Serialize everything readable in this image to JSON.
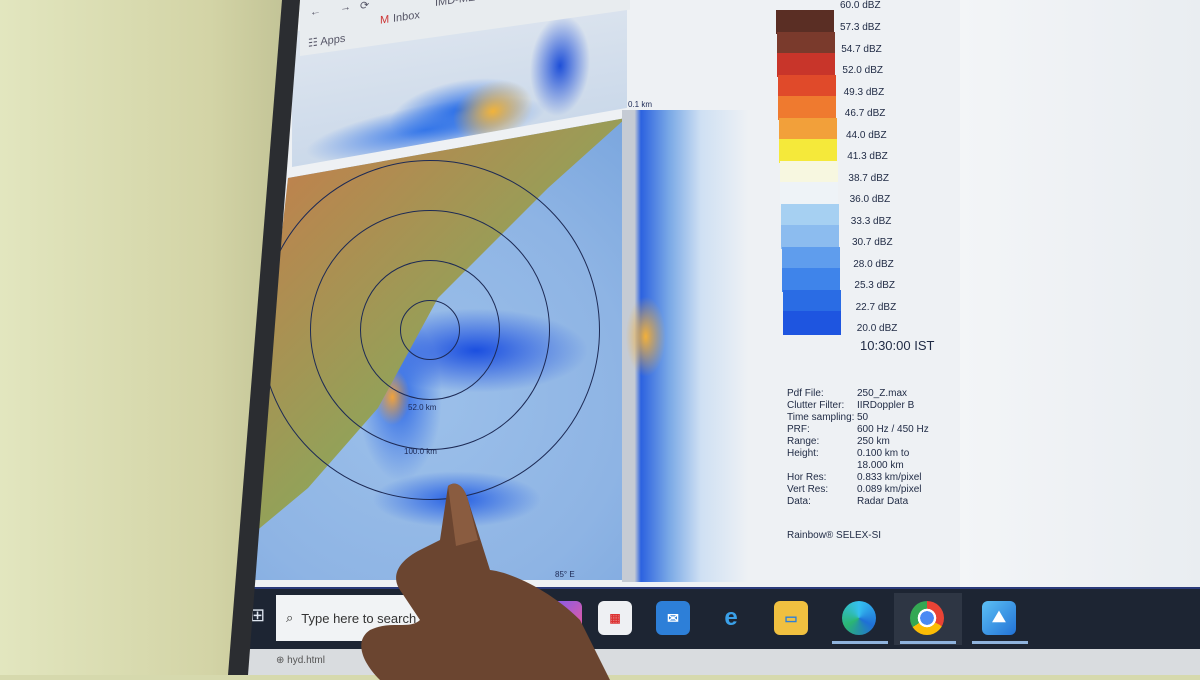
{
  "browser": {
    "bookmarks": [
      {
        "label": "Apps",
        "icon": "apps-grid-icon"
      },
      {
        "label": "Inbox",
        "icon": "gmail-icon"
      },
      {
        "label": "IMD-METAR",
        "icon": "weather-icon"
      }
    ]
  },
  "map": {
    "ring_labels": [
      "52.0 km",
      "100.0 km"
    ],
    "height_label": "0.1 km",
    "lon_label": "85° E"
  },
  "legend": {
    "top_label": "60.0 dBZ",
    "labels": [
      "57.3 dBZ",
      "54.7 dBZ",
      "52.0 dBZ",
      "49.3 dBZ",
      "46.7 dBZ",
      "44.0 dBZ",
      "41.3 dBZ",
      "38.7 dBZ",
      "36.0 dBZ",
      "33.3 dBZ",
      "30.7 dBZ",
      "28.0 dBZ",
      "25.3 dBZ",
      "22.7 dBZ",
      "20.0 dBZ"
    ],
    "colors": [
      "#5a2e24",
      "#7a3a2c",
      "#c8352a",
      "#e04a2a",
      "#ef7a2f",
      "#f2a03a",
      "#f5e93a",
      "#f7f7e0",
      "#eef3f7",
      "#a6d0f2",
      "#8cbcef",
      "#5f9ded",
      "#3f84ea",
      "#2a6ce4",
      "#1e55e0"
    ],
    "time": "10:30:00 IST"
  },
  "info": [
    {
      "k": "Pdf File:",
      "v": "250_Z.max"
    },
    {
      "k": "Clutter Filter:",
      "v": "IIRDoppler B"
    },
    {
      "k": "Time sampling:",
      "v": "50"
    },
    {
      "k": "PRF:",
      "v": "600 Hz / 450 Hz"
    },
    {
      "k": "Range:",
      "v": "250 km"
    },
    {
      "k": "Height:",
      "v": "0.100 km to"
    },
    {
      "k": "",
      "v": "18.000 km"
    },
    {
      "k": "Hor Res:",
      "v": "0.833 km/pixel"
    },
    {
      "k": "Vert Res:",
      "v": "0.089 km/pixel"
    },
    {
      "k": "Data:",
      "v": "Radar Data"
    }
  ],
  "credit": "Rainbow® SELEX-SI",
  "taskbar": {
    "search_placeholder": "Type here to search",
    "apps": [
      "copilot-icon",
      "store-icon",
      "outlook-icon",
      "internet-explorer-icon",
      "file-explorer-icon",
      "edge-icon",
      "chrome-icon",
      "photos-icon"
    ]
  },
  "tab": {
    "label": "hyd.html"
  }
}
